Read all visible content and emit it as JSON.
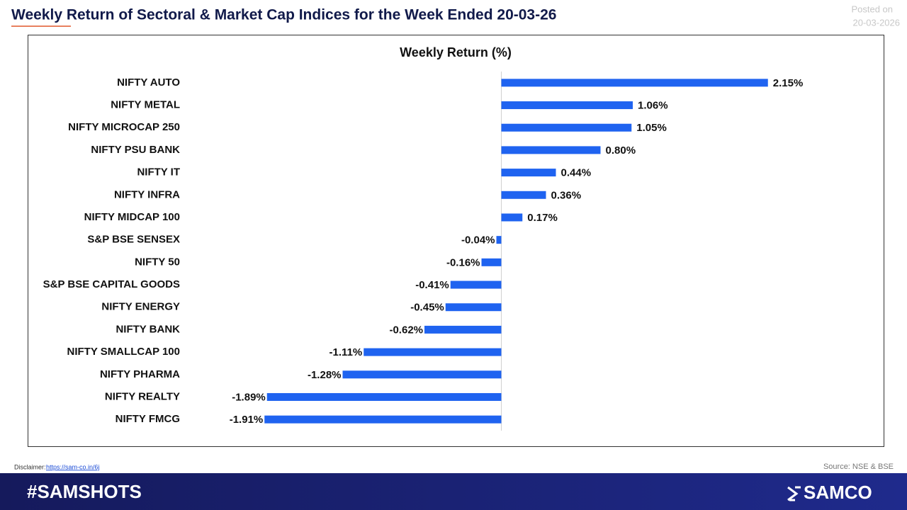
{
  "header": {
    "title": "Weekly Return of Sectoral & Market Cap Indices for the Week Ended 20-03-26",
    "posted_label": "Posted on",
    "posted_date": "20-03-2026"
  },
  "chart_data": {
    "type": "hbar",
    "title": "Weekly Return (%)",
    "categories": [
      "NIFTY AUTO",
      "NIFTY METAL",
      "NIFTY MICROCAP 250",
      "NIFTY PSU BANK",
      "NIFTY IT",
      "NIFTY INFRA",
      "NIFTY MIDCAP 100",
      "S&P BSE SENSEX",
      "NIFTY 50",
      "S&P BSE CAPITAL GOODS",
      "NIFTY ENERGY",
      "NIFTY BANK",
      "NIFTY SMALLCAP 100",
      "NIFTY PHARMA",
      "NIFTY REALTY",
      "NIFTY FMCG"
    ],
    "values": [
      2.15,
      1.06,
      1.05,
      0.8,
      0.44,
      0.36,
      0.17,
      -0.04,
      -0.16,
      -0.41,
      -0.45,
      -0.62,
      -1.11,
      -1.28,
      -1.89,
      -1.91
    ],
    "value_labels": [
      "2.15%",
      "1.06%",
      "1.05%",
      "0.80%",
      "0.44%",
      "0.36%",
      "0.17%",
      "-0.04%",
      "-0.16%",
      "-0.41%",
      "-0.45%",
      "-0.62%",
      "-1.11%",
      "-1.28%",
      "-1.89%",
      "-1.91%"
    ],
    "color": "#1f63f0",
    "xlim": [
      -2.5,
      2.5
    ]
  },
  "footer": {
    "disclaimer": "Disclaimer:",
    "link": "https://sam-co.in/6j",
    "source": "Source: NSE & BSE",
    "hashtag": "#SAMSHOTS",
    "brand": "SAMCO"
  }
}
